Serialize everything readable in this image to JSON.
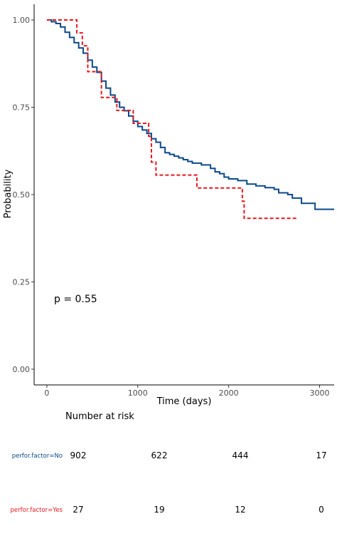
{
  "chart_data": {
    "type": "line",
    "title": "",
    "xlabel": "Time (days)",
    "ylabel": "Probability",
    "xlim": [
      -140,
      3160
    ],
    "ylim": [
      -0.045,
      1.045
    ],
    "x_ticks": [
      0,
      1000,
      2000,
      3000
    ],
    "y_ticks": [
      0.0,
      0.25,
      0.5,
      0.75,
      1.0
    ],
    "y_tick_labels": [
      "0.00",
      "0.25",
      "0.50",
      "0.75",
      "1.00"
    ],
    "grid": false,
    "annotation": "p = 0.55",
    "series": [
      {
        "name": "perfor.factor=No",
        "color": "#0b4a8a",
        "step": true,
        "dashed": false,
        "points": [
          [
            0,
            1.0
          ],
          [
            50,
            0.995
          ],
          [
            100,
            0.99
          ],
          [
            150,
            0.98
          ],
          [
            200,
            0.965
          ],
          [
            250,
            0.95
          ],
          [
            300,
            0.935
          ],
          [
            350,
            0.92
          ],
          [
            400,
            0.905
          ],
          [
            450,
            0.885
          ],
          [
            500,
            0.865
          ],
          [
            550,
            0.85
          ],
          [
            600,
            0.825
          ],
          [
            650,
            0.805
          ],
          [
            700,
            0.785
          ],
          [
            750,
            0.765
          ],
          [
            800,
            0.75
          ],
          [
            850,
            0.74
          ],
          [
            900,
            0.725
          ],
          [
            950,
            0.71
          ],
          [
            1000,
            0.695
          ],
          [
            1050,
            0.685
          ],
          [
            1100,
            0.675
          ],
          [
            1150,
            0.66
          ],
          [
            1200,
            0.65
          ],
          [
            1250,
            0.635
          ],
          [
            1300,
            0.62
          ],
          [
            1350,
            0.615
          ],
          [
            1400,
            0.61
          ],
          [
            1450,
            0.605
          ],
          [
            1500,
            0.6
          ],
          [
            1550,
            0.595
          ],
          [
            1600,
            0.59
          ],
          [
            1700,
            0.585
          ],
          [
            1800,
            0.575
          ],
          [
            1850,
            0.565
          ],
          [
            1900,
            0.56
          ],
          [
            1950,
            0.55
          ],
          [
            2000,
            0.545
          ],
          [
            2100,
            0.54
          ],
          [
            2200,
            0.53
          ],
          [
            2300,
            0.525
          ],
          [
            2400,
            0.52
          ],
          [
            2500,
            0.515
          ],
          [
            2550,
            0.505
          ],
          [
            2650,
            0.5
          ],
          [
            2700,
            0.49
          ],
          [
            2800,
            0.475
          ],
          [
            2950,
            0.458
          ],
          [
            3160,
            0.458
          ]
        ]
      },
      {
        "name": "perfor.factor=Yes",
        "color": "#e8161c",
        "step": true,
        "dashed": true,
        "points": [
          [
            0,
            1.0
          ],
          [
            330,
            0.963
          ],
          [
            390,
            0.926
          ],
          [
            450,
            0.852
          ],
          [
            600,
            0.778
          ],
          [
            770,
            0.741
          ],
          [
            950,
            0.704
          ],
          [
            1120,
            0.667
          ],
          [
            1150,
            0.593
          ],
          [
            1200,
            0.556
          ],
          [
            1650,
            0.519
          ],
          [
            2150,
            0.481
          ],
          [
            2170,
            0.432
          ],
          [
            2750,
            0.432
          ]
        ]
      }
    ],
    "risk_table": {
      "title": "Number at risk",
      "times": [
        0,
        1000,
        2000,
        3000
      ],
      "rows": [
        {
          "label": "perfor.factor=No",
          "color": "#0b4a8a",
          "counts": [
            "902",
            "622",
            "444",
            "17"
          ]
        },
        {
          "label": "perfor.factor=Yes",
          "color": "#e8161c",
          "counts": [
            "27",
            "19",
            "12",
            "0"
          ]
        }
      ]
    }
  }
}
